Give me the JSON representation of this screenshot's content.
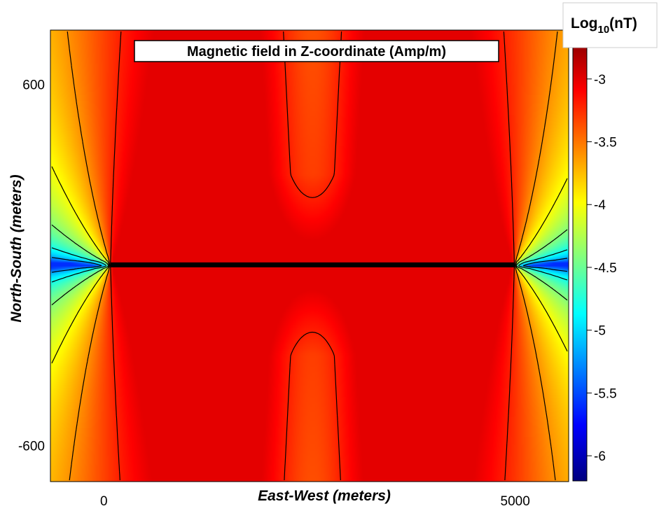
{
  "chart_data": {
    "type": "heatmap",
    "title": "Magnetic field in Z-coordinate (Amp/m)",
    "xlabel": "East-West (meters)",
    "ylabel": "North-South (meters)",
    "x_ticks": [
      0,
      5000
    ],
    "y_ticks": [
      600,
      -600
    ],
    "xlim": [
      -650,
      5650
    ],
    "ylim": [
      -720,
      780
    ],
    "colorbar": {
      "title": "Log",
      "title_subscript": "10",
      "title_suffix": "(nT)",
      "ticks": [
        -3,
        -3.5,
        -4,
        -4.5,
        -5,
        -5.5,
        -6
      ],
      "range": [
        -6.2,
        -2.65
      ],
      "colors": [
        "#00007f",
        "#0000ff",
        "#0080ff",
        "#00ffff",
        "#80ff80",
        "#ffff00",
        "#ff8000",
        "#ff0000",
        "#7f0000"
      ]
    },
    "source_line": {
      "x": [
        80,
        4990
      ],
      "y": [
        0,
        0
      ]
    },
    "field_model": {
      "description": "dipole-like anomaly along source line",
      "peak_value": -3.0,
      "background_value": -5.6
    },
    "grid": false,
    "legend": "colorbar-right"
  }
}
